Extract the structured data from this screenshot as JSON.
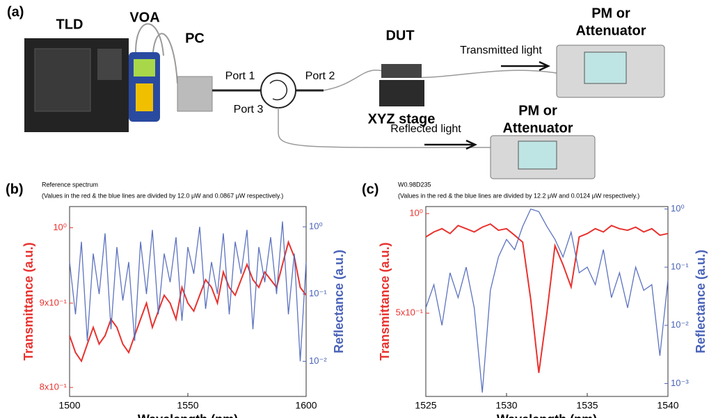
{
  "diagram": {
    "panel_label": "(a)",
    "tld": "TLD",
    "voa": "VOA",
    "pc": "PC",
    "port1": "Port 1",
    "port2": "Port 2",
    "port3": "Port 3",
    "dut": "DUT",
    "stage": "XYZ stage",
    "transmitted": "Transmitted light",
    "reflected": "Reflected light",
    "pm_top_1": "PM or",
    "pm_top_2": "Attenuator",
    "pm_bottom_1": "PM or",
    "pm_bottom_2": "Attenuator"
  },
  "chart_data": [
    {
      "type": "line",
      "panel_label": "(b)",
      "title": "Reference spectrum",
      "subtitle": "(Values in the red & the blue lines are divided by 12.0 μW and 0.0867 μW respectively.)",
      "x_label": "Wavelength (nm)",
      "y_label": "Transmittance (a.u.)",
      "y2_label": "Reflectance (a.u.)",
      "xlim": [
        1500,
        1600
      ],
      "xticks": [
        1500,
        1550,
        1600
      ],
      "ylim": [
        0.79,
        1.03
      ],
      "ylog": true,
      "yticks": [
        {
          "value": 0.8,
          "label": "8x10⁻¹"
        },
        {
          "value": 0.9,
          "label": "9x10⁻¹"
        },
        {
          "value": 1,
          "label": "10⁰"
        }
      ],
      "y2lim": [
        0.003,
        2
      ],
      "y2log": true,
      "y2ticks": [
        {
          "value": 1,
          "label": "10⁰"
        },
        {
          "value": 0.1,
          "label": "10⁻¹"
        },
        {
          "value": 0.01,
          "label": "10⁻²"
        }
      ],
      "x": [
        1500,
        1502.5,
        1505,
        1507.5,
        1510,
        1512.5,
        1515,
        1517.5,
        1520,
        1522.5,
        1525,
        1527.5,
        1530,
        1532.5,
        1535,
        1537.5,
        1540,
        1542.5,
        1545,
        1547.5,
        1550,
        1552.5,
        1555,
        1557.5,
        1560,
        1562.5,
        1565,
        1567.5,
        1570,
        1572.5,
        1575,
        1577.5,
        1580,
        1582.5,
        1585,
        1587.5,
        1590,
        1592.5,
        1595,
        1597.5,
        1600
      ],
      "series": [
        {
          "color": "#e8322e",
          "values": [
            0.86,
            0.84,
            0.83,
            0.85,
            0.87,
            0.85,
            0.86,
            0.88,
            0.87,
            0.85,
            0.84,
            0.86,
            0.88,
            0.9,
            0.87,
            0.89,
            0.91,
            0.9,
            0.88,
            0.92,
            0.9,
            0.89,
            0.91,
            0.93,
            0.92,
            0.9,
            0.94,
            0.92,
            0.91,
            0.93,
            0.95,
            0.93,
            0.92,
            0.94,
            0.93,
            0.92,
            0.95,
            0.98,
            0.96,
            0.92,
            0.91
          ]
        },
        {
          "color": "#4a63b8",
          "axis": "y2",
          "values": [
            0.3,
            0.05,
            0.6,
            0.02,
            0.4,
            0.1,
            0.8,
            0.03,
            0.5,
            0.08,
            0.3,
            0.02,
            0.6,
            0.1,
            0.9,
            0.05,
            0.4,
            0.15,
            0.7,
            0.04,
            0.5,
            0.2,
            1.0,
            0.06,
            0.3,
            0.1,
            0.8,
            0.05,
            0.6,
            0.2,
            0.9,
            0.03,
            0.5,
            0.15,
            0.7,
            0.1,
            1.2,
            0.05,
            0.4,
            0.01,
            0.3
          ]
        }
      ]
    },
    {
      "type": "line",
      "panel_label": "(c)",
      "title": "W0.98D235",
      "subtitle": "(Values in the red & the blue lines are divided by 12.2 μW and 0.0124 μW respectively.)",
      "x_label": "Wavelength (nm)",
      "y_label": "Transmittance (a.u.)",
      "y2_label": "Reflectance (a.u.)",
      "xlim": [
        1525,
        1540
      ],
      "xticks": [
        1525,
        1530,
        1535,
        1540
      ],
      "ylim": [
        0.28,
        1.05
      ],
      "ylog": true,
      "yticks": [
        {
          "value": 1,
          "label": "10⁰"
        },
        {
          "value": 0.5,
          "label": "5x10⁻¹"
        }
      ],
      "y2lim": [
        0.0006,
        1.1
      ],
      "y2log": true,
      "y2ticks": [
        {
          "value": 1,
          "label": "10⁰"
        },
        {
          "value": 0.1,
          "label": "10⁻¹"
        },
        {
          "value": 0.01,
          "label": "10⁻²"
        },
        {
          "value": 0.001,
          "label": "10⁻³"
        }
      ],
      "x": [
        1525,
        1525.5,
        1526,
        1526.5,
        1527,
        1527.5,
        1528,
        1528.5,
        1529,
        1529.5,
        1530,
        1530.5,
        1531,
        1531.5,
        1532,
        1532.5,
        1533,
        1533.5,
        1534,
        1534.5,
        1535,
        1535.5,
        1536,
        1536.5,
        1537,
        1537.5,
        1538,
        1538.5,
        1539,
        1539.5,
        1540
      ],
      "series": [
        {
          "color": "#e8322e",
          "values": [
            0.85,
            0.88,
            0.9,
            0.87,
            0.92,
            0.9,
            0.88,
            0.91,
            0.93,
            0.89,
            0.9,
            0.86,
            0.82,
            0.55,
            0.33,
            0.5,
            0.8,
            0.7,
            0.6,
            0.85,
            0.87,
            0.9,
            0.88,
            0.92,
            0.9,
            0.89,
            0.91,
            0.88,
            0.9,
            0.86,
            0.87
          ]
        },
        {
          "color": "#4a63b8",
          "axis": "y2",
          "values": [
            0.02,
            0.05,
            0.01,
            0.08,
            0.03,
            0.1,
            0.02,
            0.0007,
            0.04,
            0.15,
            0.3,
            0.2,
            0.5,
            1.0,
            0.9,
            0.5,
            0.3,
            0.15,
            0.4,
            0.08,
            0.1,
            0.05,
            0.2,
            0.03,
            0.08,
            0.02,
            0.1,
            0.04,
            0.05,
            0.003,
            0.06
          ]
        }
      ]
    }
  ]
}
